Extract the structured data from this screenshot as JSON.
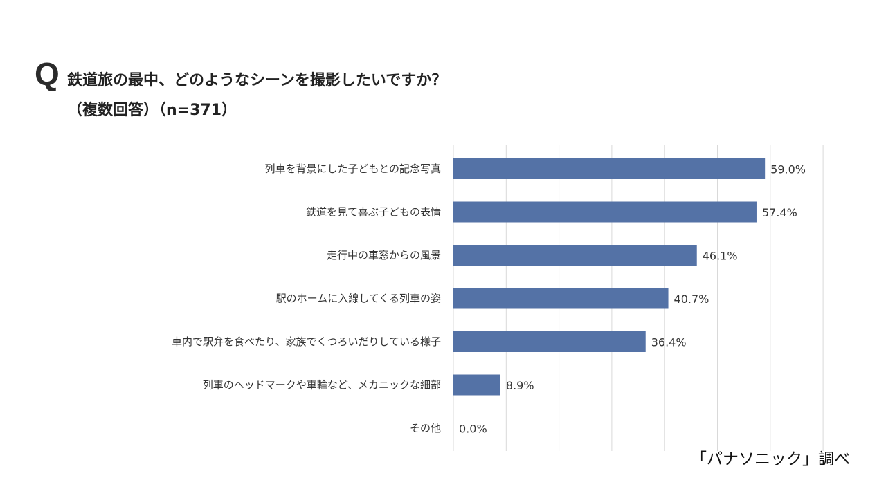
{
  "question": {
    "mark": "Q",
    "title": "鉄道旅の最中、どのようなシーンを撮影したいですか？",
    "subtitle": "（複数回答）（n=371）"
  },
  "source": "「パナソニック」調べ",
  "colors": {
    "bar": "#5472a6",
    "grid": "#d9d9d9",
    "text": "#333333"
  },
  "chart_data": {
    "type": "bar",
    "orientation": "horizontal",
    "categories": [
      "列車を背景にした子どもとの記念写真",
      "鉄道を見て喜ぶ子どもの表情",
      "走行中の車窓からの風景",
      "駅のホームに入線してくる列車の姿",
      "車内で駅弁を食べたり、家族でくつろいだりしている様子",
      "列車のヘッドマークや車輪など、メカニックな細部",
      "その他"
    ],
    "values": [
      59.0,
      57.4,
      46.1,
      40.7,
      36.4,
      8.9,
      0.0
    ],
    "value_labels": [
      "59.0%",
      "57.4%",
      "46.1%",
      "40.7%",
      "36.4%",
      "8.9%",
      "0.0%"
    ],
    "xlim": [
      0,
      70
    ],
    "grid_step": 10,
    "grid": true,
    "legend": "none"
  }
}
